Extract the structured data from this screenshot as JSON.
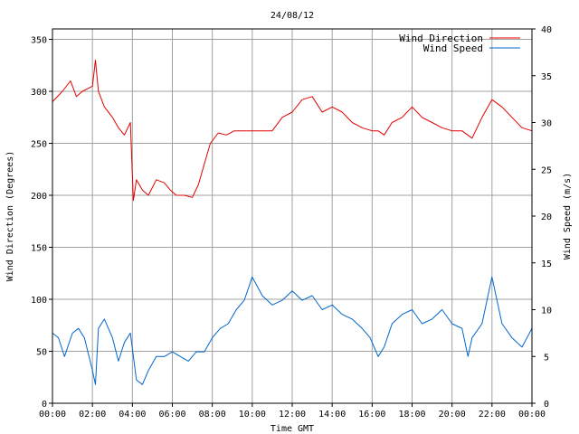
{
  "chart_data": {
    "type": "line",
    "title": "24/08/12",
    "xlabel": "Time GMT",
    "ylabel_left": "Wind Direction (Degrees)",
    "ylabel_right": "Wind Speed (m/s)",
    "x_ticks": [
      "00:00",
      "02:00",
      "04:00",
      "06:00",
      "08:00",
      "10:00",
      "12:00",
      "14:00",
      "16:00",
      "18:00",
      "20:00",
      "22:00",
      "00:00"
    ],
    "x_range_hours": [
      0,
      24
    ],
    "ylim_left": [
      0,
      360
    ],
    "yticks_left": [
      0,
      50,
      100,
      150,
      200,
      250,
      300,
      350
    ],
    "ylim_right": [
      0,
      40
    ],
    "yticks_right": [
      0,
      5,
      10,
      15,
      20,
      25,
      30,
      35,
      40
    ],
    "grid": true,
    "legend_position": "top-right",
    "series": [
      {
        "name": "Wind Direction",
        "axis": "left",
        "color": "#e00000",
        "x_hours": [
          0,
          0.5,
          0.9,
          1.2,
          1.5,
          1.8,
          2.0,
          2.15,
          2.3,
          2.6,
          3.0,
          3.3,
          3.6,
          3.9,
          4.05,
          4.2,
          4.5,
          4.8,
          5.2,
          5.6,
          5.9,
          6.2,
          6.6,
          7.0,
          7.3,
          7.6,
          7.9,
          8.3,
          8.7,
          9.1,
          9.5,
          10.0,
          10.5,
          11.0,
          11.5,
          12.0,
          12.5,
          13.0,
          13.5,
          14.0,
          14.5,
          15.0,
          15.5,
          16.0,
          16.3,
          16.6,
          17.0,
          17.5,
          18.0,
          18.5,
          19.0,
          19.5,
          20.0,
          20.5,
          21.0,
          21.5,
          22.0,
          22.5,
          23.0,
          23.5,
          24.0
        ],
        "values": [
          290,
          300,
          310,
          295,
          300,
          303,
          305,
          330,
          300,
          285,
          275,
          265,
          258,
          270,
          195,
          215,
          205,
          200,
          215,
          212,
          205,
          200,
          200,
          198,
          210,
          230,
          250,
          260,
          258,
          262,
          262,
          262,
          262,
          262,
          275,
          280,
          292,
          295,
          280,
          285,
          280,
          270,
          265,
          262,
          262,
          258,
          270,
          275,
          285,
          275,
          270,
          265,
          262,
          262,
          255,
          275,
          292,
          285,
          275,
          265,
          262
        ]
      },
      {
        "name": "Wind Speed",
        "axis": "right",
        "color": "#0066cc",
        "x_hours": [
          0,
          0.3,
          0.6,
          1.0,
          1.3,
          1.6,
          2.0,
          2.15,
          2.3,
          2.6,
          3.0,
          3.3,
          3.6,
          3.9,
          4.2,
          4.5,
          4.8,
          5.2,
          5.6,
          6.0,
          6.4,
          6.8,
          7.2,
          7.6,
          8.0,
          8.4,
          8.8,
          9.2,
          9.6,
          10.0,
          10.5,
          11.0,
          11.5,
          12.0,
          12.5,
          13.0,
          13.5,
          14.0,
          14.5,
          15.0,
          15.5,
          15.9,
          16.3,
          16.6,
          17.0,
          17.5,
          18.0,
          18.5,
          19.0,
          19.5,
          20.0,
          20.5,
          20.8,
          21.0,
          21.5,
          22.0,
          22.5,
          23.0,
          23.5,
          24.0
        ],
        "values": [
          7.5,
          7.0,
          5.0,
          7.5,
          8.0,
          7.0,
          3.5,
          2.0,
          8.0,
          9.0,
          7.0,
          4.5,
          6.5,
          7.5,
          2.5,
          2.0,
          3.5,
          5.0,
          5.0,
          5.5,
          5.0,
          4.5,
          5.5,
          5.5,
          7.0,
          8.0,
          8.5,
          10.0,
          11.0,
          13.5,
          11.5,
          10.5,
          11.0,
          12.0,
          11.0,
          11.5,
          10.0,
          10.5,
          9.5,
          9.0,
          8.0,
          7.0,
          5.0,
          6.0,
          8.5,
          9.5,
          10.0,
          8.5,
          9.0,
          10.0,
          8.5,
          8.0,
          5.0,
          7.0,
          8.5,
          13.5,
          8.5,
          7.0,
          6.0,
          8.0
        ]
      }
    ]
  }
}
